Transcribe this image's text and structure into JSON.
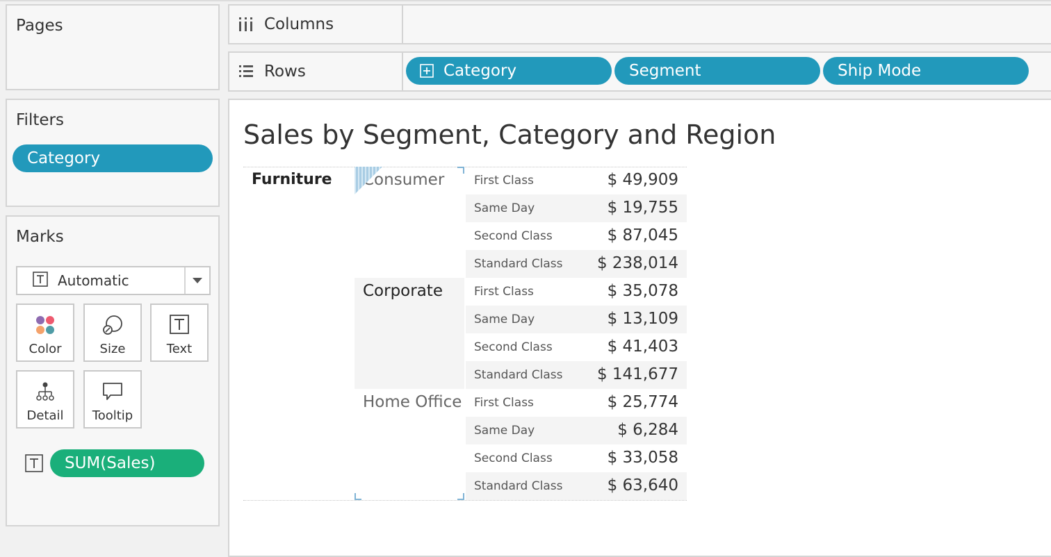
{
  "pages": {
    "title": "Pages"
  },
  "filters": {
    "title": "Filters",
    "pills": [
      "Category"
    ]
  },
  "marks": {
    "title": "Marks",
    "mark_type": "Automatic",
    "buttons": [
      "Color",
      "Size",
      "Text",
      "Detail",
      "Tooltip"
    ],
    "field": "SUM(Sales)"
  },
  "shelves": {
    "columns_label": "Columns",
    "rows_label": "Rows",
    "row_pills": [
      "Category",
      "Segment",
      "Ship Mode"
    ]
  },
  "view": {
    "title": "Sales by Segment, Category and Region",
    "category": "Furniture",
    "segments": [
      {
        "name": "Consumer",
        "rows": [
          {
            "ship_mode": "First Class",
            "value": "$ 49,909"
          },
          {
            "ship_mode": "Same Day",
            "value": "$ 19,755"
          },
          {
            "ship_mode": "Second Class",
            "value": "$ 87,045"
          },
          {
            "ship_mode": "Standard Class",
            "value": "$ 238,014"
          }
        ]
      },
      {
        "name": "Corporate",
        "rows": [
          {
            "ship_mode": "First Class",
            "value": "$ 35,078"
          },
          {
            "ship_mode": "Same Day",
            "value": "$ 13,109"
          },
          {
            "ship_mode": "Second Class",
            "value": "$ 41,403"
          },
          {
            "ship_mode": "Standard Class",
            "value": "$ 141,677"
          }
        ]
      },
      {
        "name": "Home Office",
        "rows": [
          {
            "ship_mode": "First Class",
            "value": "$ 25,774"
          },
          {
            "ship_mode": "Same Day",
            "value": "$ 6,284"
          },
          {
            "ship_mode": "Second Class",
            "value": "$ 33,058"
          },
          {
            "ship_mode": "Standard Class",
            "value": "$ 63,640"
          }
        ]
      }
    ]
  },
  "colors": {
    "pill_blue": "#2299bb",
    "pill_green": "#1aaf7a",
    "selection": "#7fb3d5"
  }
}
